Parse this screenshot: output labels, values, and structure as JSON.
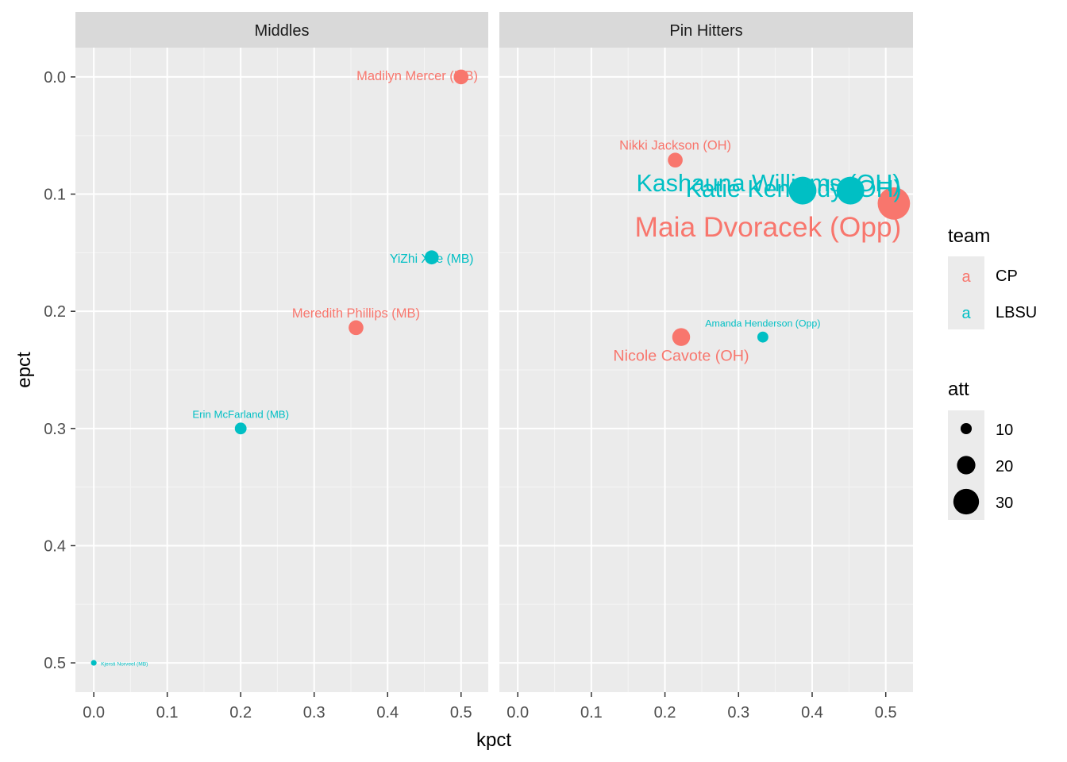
{
  "chart_data": {
    "type": "scatter",
    "xlabel": "kpct",
    "ylabel": "epct",
    "y_reversed": true,
    "xlim": [
      -0.025,
      0.537
    ],
    "ylim": [
      -0.025,
      0.525
    ],
    "x_ticks": [
      0.0,
      0.1,
      0.2,
      0.3,
      0.4,
      0.5
    ],
    "x_tick_labels": [
      "0.0",
      "0.1",
      "0.2",
      "0.3",
      "0.4",
      "0.5"
    ],
    "y_ticks": [
      0.0,
      0.1,
      0.2,
      0.3,
      0.4,
      0.5
    ],
    "y_tick_labels": [
      "0.0",
      "0.1",
      "0.2",
      "0.3",
      "0.4",
      "0.5"
    ],
    "grid": true,
    "colors": {
      "CP": "#F8766D",
      "LBSU": "#00BFC4"
    },
    "legend_placement": "right",
    "legends": {
      "team": {
        "title": "team",
        "entries": [
          "CP",
          "LBSU"
        ],
        "key_glyph": "a"
      },
      "att": {
        "title": "att",
        "entries": [
          "10",
          "20",
          "30"
        ],
        "values": [
          10,
          20,
          30
        ]
      }
    },
    "facets": [
      {
        "name": "Middles",
        "points": [
          {
            "label": "Madilyn Mercer (MB)",
            "team": "CP",
            "kpct": 0.5,
            "epct": 0.0,
            "att": 14
          },
          {
            "label": "YiZhi Xue (MB)",
            "team": "LBSU",
            "kpct": 0.46,
            "epct": 0.154,
            "att": 13
          },
          {
            "label": "Meredith Phillips (MB)",
            "team": "CP",
            "kpct": 0.357,
            "epct": 0.214,
            "att": 14
          },
          {
            "label": "Erin McFarland (MB)",
            "team": "LBSU",
            "kpct": 0.2,
            "epct": 0.3,
            "att": 10
          },
          {
            "label": "Kjersti Norveel (MB)",
            "team": "LBSU",
            "kpct": 0.0,
            "epct": 0.5,
            "att": 2
          }
        ]
      },
      {
        "name": "Pin Hitters",
        "points": [
          {
            "label": "Nikki Jackson (OH)",
            "team": "CP",
            "kpct": 0.214,
            "epct": 0.071,
            "att": 14
          },
          {
            "label": "Kashauna Williams (OH)",
            "team": "LBSU",
            "kpct": 0.452,
            "epct": 0.097,
            "att": 31
          },
          {
            "label": "Katie Kennedy (OH)",
            "team": "LBSU",
            "kpct": 0.387,
            "epct": 0.097,
            "att": 31
          },
          {
            "label": "Maia Dvoracek (Opp)",
            "team": "CP",
            "kpct": 0.511,
            "epct": 0.108,
            "att": 37
          },
          {
            "label": "Amanda Henderson (Opp)",
            "team": "LBSU",
            "kpct": 0.333,
            "epct": 0.222,
            "att": 9
          },
          {
            "label": "Nicole Cavote (OH)",
            "team": "CP",
            "kpct": 0.222,
            "epct": 0.222,
            "att": 18
          }
        ]
      }
    ]
  }
}
